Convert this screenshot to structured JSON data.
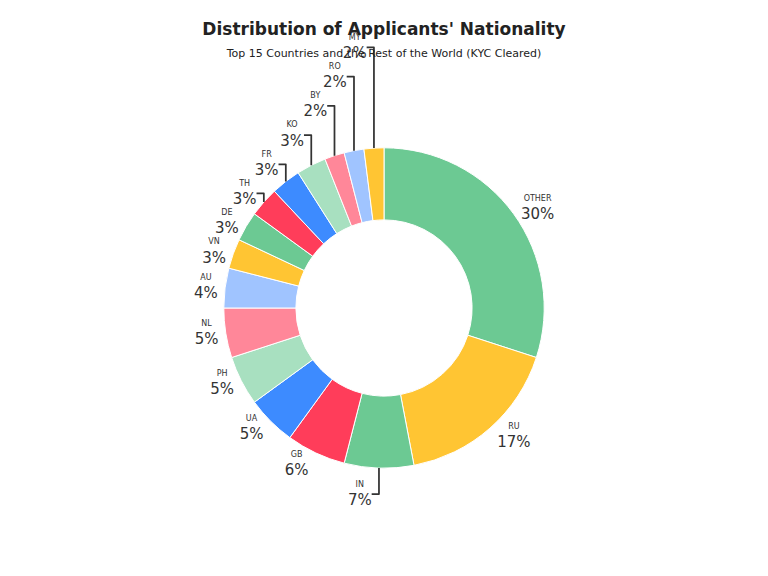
{
  "chart_data": {
    "type": "pie",
    "title": "Distribution of Applicants' Nationality",
    "subtitle": "Top 15 Countries and the Rest of the World (KYC Cleared)",
    "categories": [
      "OTHER",
      "RU",
      "IN",
      "GB",
      "UA",
      "PH",
      "NL",
      "AU",
      "VN",
      "DE",
      "TH",
      "FR",
      "KO",
      "BY",
      "RO",
      "MY"
    ],
    "values": [
      30,
      17,
      7,
      6,
      5,
      5,
      5,
      4,
      3,
      3,
      3,
      3,
      3,
      2,
      2,
      2
    ],
    "value_labels": [
      "30%",
      "17%",
      "7%",
      "6%",
      "5%",
      "5%",
      "5%",
      "4%",
      "3%",
      "3%",
      "3%",
      "3%",
      "3%",
      "2%",
      "2%",
      "2%"
    ],
    "colors": [
      "#6cc993",
      "#ffc533",
      "#6cc993",
      "#ff3d5a",
      "#3d8bff",
      "#a8e0c0",
      "#ff8799",
      "#a0c4ff",
      "#ffc533",
      "#6cc993",
      "#ff3d5a",
      "#3d8bff",
      "#a8e0c0",
      "#ff8799",
      "#a0c4ff",
      "#ffc533"
    ],
    "data_labels": true
  }
}
